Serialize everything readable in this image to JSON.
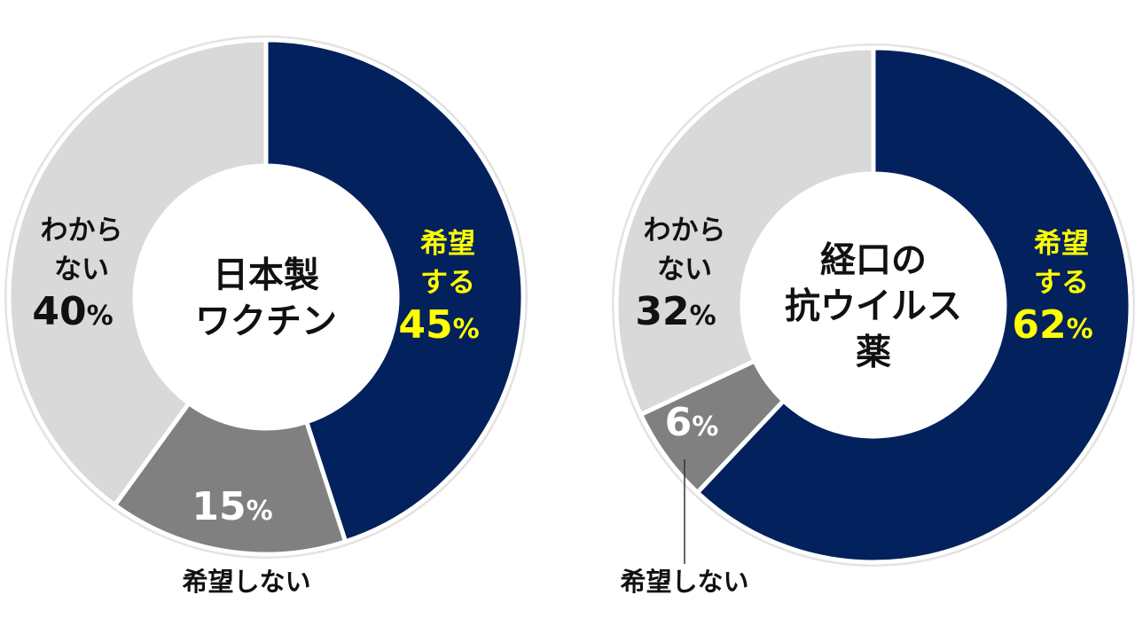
{
  "chart_data": [
    {
      "type": "pie",
      "title": "日本製\nワクチン",
      "categories": [
        "希望する",
        "希望しない",
        "わからない"
      ],
      "values": [
        45,
        15,
        40
      ],
      "colors": [
        "#03215C",
        "#808080",
        "#D9D9D9"
      ],
      "label_colors": [
        "#FFFF00",
        "#FFFFFF",
        "#111111"
      ],
      "percent_labels": [
        "45%",
        "15%",
        "40%"
      ],
      "outside_labels": [
        {
          "category_index": 1,
          "text": "希望しない"
        }
      ]
    },
    {
      "type": "pie",
      "title": "経口の\n抗ウイルス\n薬",
      "categories": [
        "希望する",
        "希望しない",
        "わからない"
      ],
      "values": [
        62,
        6,
        32
      ],
      "colors": [
        "#03215C",
        "#808080",
        "#D9D9D9"
      ],
      "label_colors": [
        "#FFFF00",
        "#FFFFFF",
        "#111111"
      ],
      "percent_labels": [
        "62%",
        "6%",
        "32%"
      ],
      "outside_labels": [
        {
          "category_index": 1,
          "text": "希望しない"
        }
      ]
    }
  ]
}
